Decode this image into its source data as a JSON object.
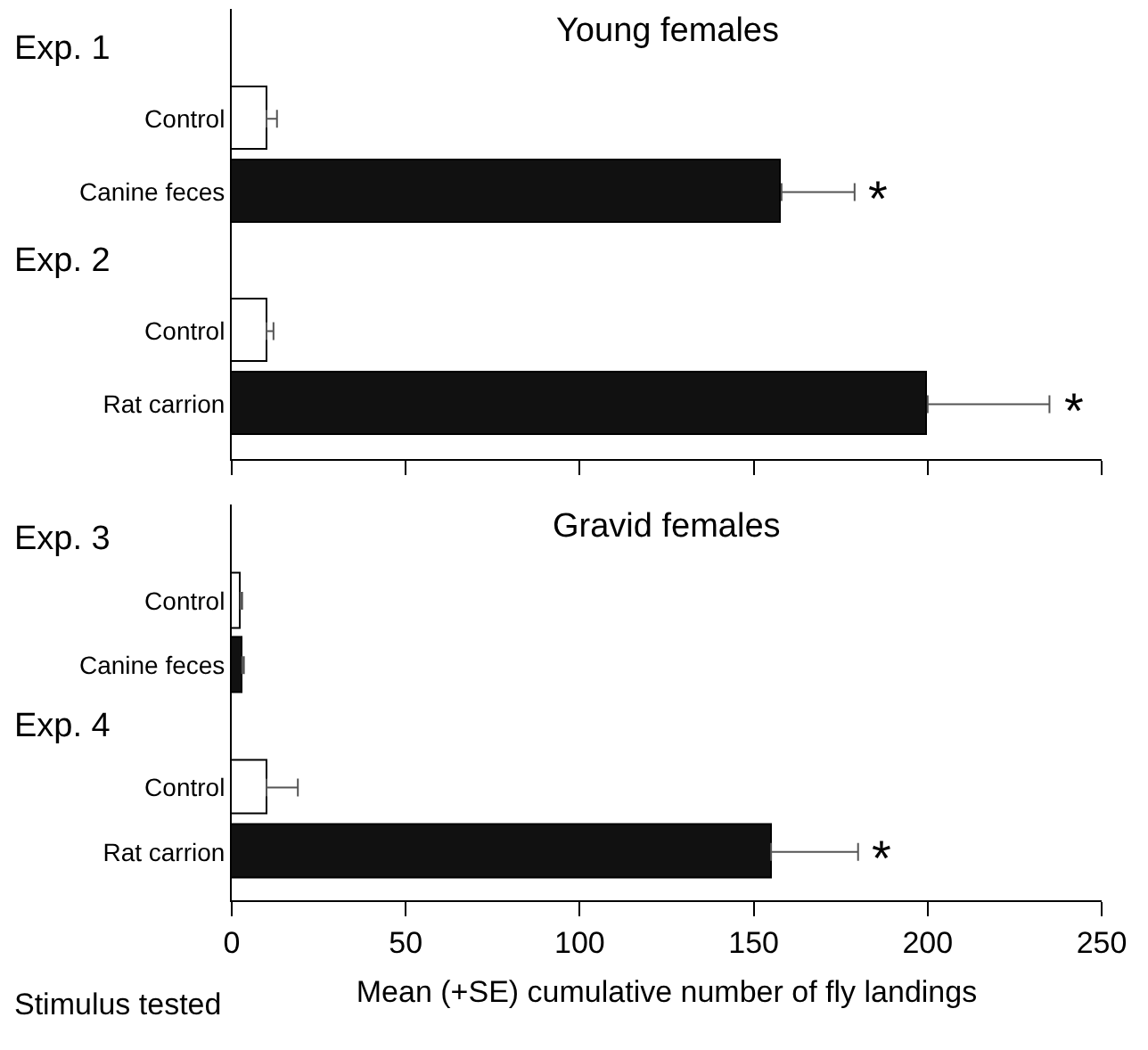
{
  "chart_data": [
    {
      "type": "bar",
      "orientation": "horizontal",
      "title": "Young females",
      "categories": [
        "Control",
        "Canine feces",
        "Control",
        "Rat carrion"
      ],
      "values": [
        10,
        158,
        10,
        200
      ],
      "colors": [
        "#ffffff",
        "#111111",
        "#ffffff",
        "#111111"
      ],
      "errors": [
        [
          10,
          13
        ],
        [
          158,
          179
        ],
        [
          10,
          12
        ],
        [
          200,
          235
        ]
      ],
      "value_labels": [
        null,
        "*",
        null,
        "*"
      ],
      "annotations": [
        "Exp. 1",
        "Exp. 2"
      ],
      "xlim": [
        0,
        250
      ],
      "xticks": [
        0,
        50,
        100,
        150,
        200,
        250
      ],
      "tick_labels": "y"
    },
    {
      "type": "bar",
      "orientation": "horizontal",
      "title": "Gravid females",
      "categories": [
        "Control",
        "Canine feces",
        "Control",
        "Rat carrion"
      ],
      "values": [
        2.5,
        3,
        10,
        155
      ],
      "colors": [
        "#ffffff",
        "#111111",
        "#ffffff",
        "#111111"
      ],
      "errors": [
        [
          2.5,
          3
        ],
        [
          3,
          3.5
        ],
        [
          10,
          19
        ],
        [
          155,
          180
        ]
      ],
      "value_labels": [
        null,
        null,
        null,
        "*"
      ],
      "annotations": [
        "Exp. 3",
        "Exp. 4"
      ],
      "xlim": [
        0,
        250
      ],
      "xticks": [
        0,
        50,
        100,
        150,
        200,
        250
      ],
      "xlabel": "Mean (+SE) cumulative number of fly landings",
      "ylabel": "Stimulus tested"
    }
  ]
}
